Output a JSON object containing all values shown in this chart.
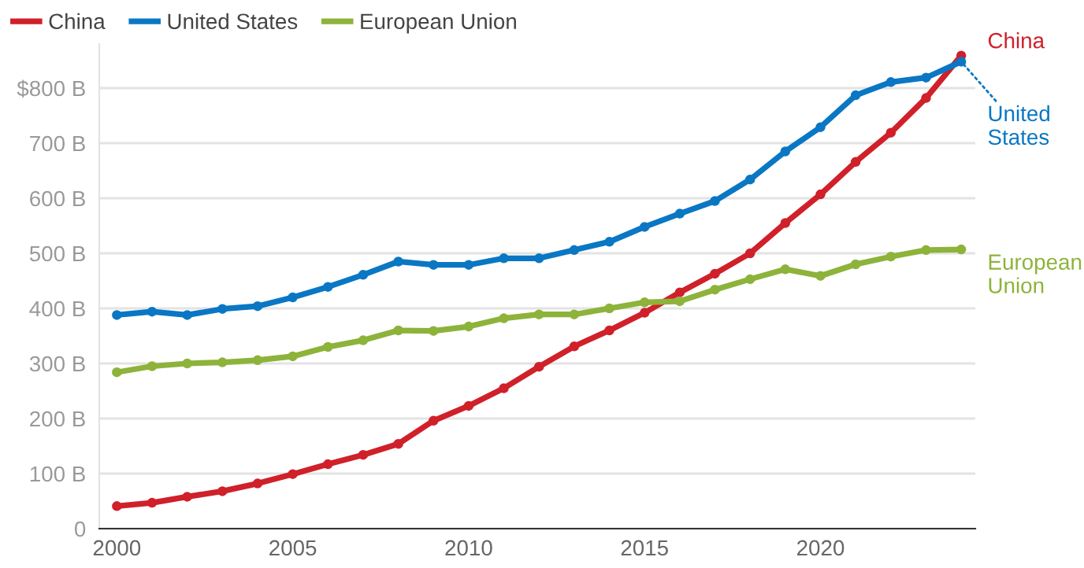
{
  "chart_data": {
    "type": "line",
    "x": [
      2000,
      2001,
      2002,
      2003,
      2004,
      2005,
      2006,
      2007,
      2008,
      2009,
      2010,
      2011,
      2012,
      2013,
      2014,
      2015,
      2016,
      2017,
      2018,
      2019,
      2020,
      2021,
      2022,
      2023,
      2024
    ],
    "series": [
      {
        "name": "China",
        "color": "#d0202a",
        "values": [
          41,
          47,
          58,
          68,
          82,
          99,
          117,
          134,
          154,
          196,
          223,
          255,
          294,
          331,
          360,
          392,
          429,
          463,
          500,
          555,
          607,
          666,
          719,
          782,
          859
        ]
      },
      {
        "name": "United States",
        "color": "#0a77c4",
        "values": [
          388,
          394,
          388,
          399,
          404,
          420,
          439,
          461,
          485,
          479,
          479,
          491,
          491,
          506,
          521,
          548,
          572,
          595,
          634,
          685,
          729,
          787,
          811,
          819,
          848
        ]
      },
      {
        "name": "European Union",
        "color": "#8db33a",
        "values": [
          284,
          295,
          300,
          302,
          306,
          313,
          330,
          342,
          360,
          359,
          367,
          382,
          389,
          389,
          400,
          411,
          413,
          434,
          453,
          471,
          459,
          480,
          494,
          506,
          507
        ]
      }
    ],
    "xlim": [
      1999.5,
      2024.4
    ],
    "xticks": [
      2000,
      2005,
      2010,
      2015,
      2020
    ],
    "yticks": [
      {
        "value": 0,
        "label": "0"
      },
      {
        "value": 100,
        "label": "100 B"
      },
      {
        "value": 200,
        "label": "200 B"
      },
      {
        "value": 300,
        "label": "300 B"
      },
      {
        "value": 400,
        "label": "400 B"
      },
      {
        "value": 500,
        "label": "500 B"
      },
      {
        "value": 600,
        "label": "600 B"
      },
      {
        "value": 700,
        "label": "700 B"
      },
      {
        "value": 800,
        "label": "$800 B"
      }
    ],
    "ylim": [
      0,
      880
    ],
    "grid": "y",
    "legend": "top left",
    "marker": "circle",
    "line_style": "solid"
  }
}
